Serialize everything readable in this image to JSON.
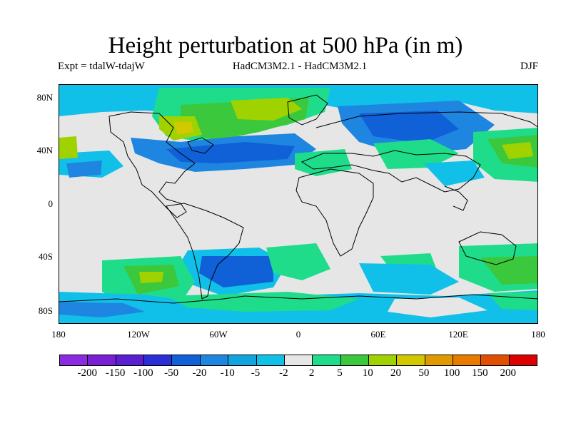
{
  "title": "Height perturbation at 500 hPa (in m)",
  "experiment": "Expt = tdalW-tdajW",
  "models": "HadCM3M2.1 - HadCM3M2.1",
  "season": "DJF",
  "lat_labels": [
    "80N",
    "40N",
    "0",
    "40S",
    "80S"
  ],
  "lon_labels": [
    "180",
    "120W",
    "60W",
    "0",
    "60E",
    "120E",
    "180"
  ],
  "colorbar": {
    "colors": [
      "#8a2be2",
      "#7a1fd6",
      "#5a1fd0",
      "#2b2fd8",
      "#1060d8",
      "#1e86e0",
      "#12a4e0",
      "#10c0e8",
      "#e6e6e6",
      "#1edc8a",
      "#3cc83c",
      "#a0d200",
      "#d2c800",
      "#e09a00",
      "#e87a00",
      "#e05000",
      "#dc0000"
    ],
    "labels": [
      "-200",
      "-150",
      "-100",
      "-50",
      "-20",
      "-10",
      "-5",
      "-2",
      "2",
      "5",
      "10",
      "20",
      "50",
      "100",
      "150",
      "200"
    ]
  },
  "map_background": "#e6e6e6"
}
